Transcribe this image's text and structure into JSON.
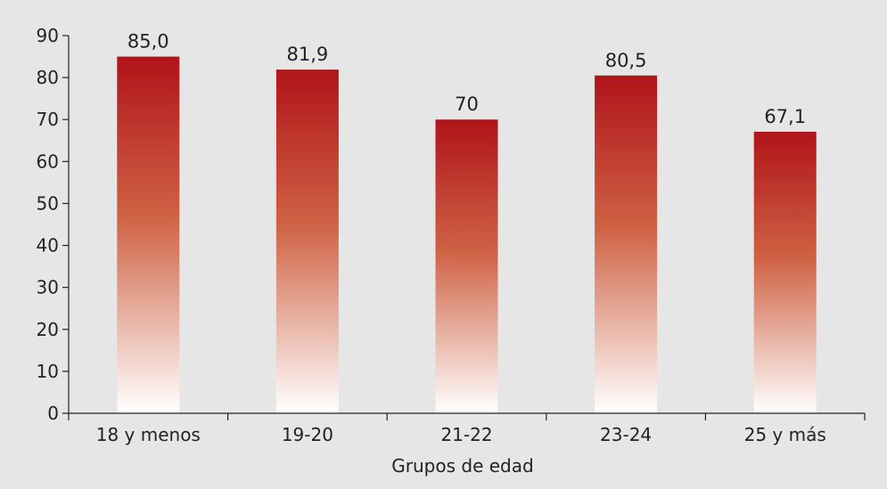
{
  "chart_data": {
    "type": "bar",
    "title": "",
    "xlabel": "Grupos de edad",
    "ylabel": "",
    "categories": [
      "18 y menos",
      "19-20",
      "21-22",
      "23-24",
      "25 y más"
    ],
    "values": [
      85.0,
      81.9,
      70,
      80.5,
      67.1
    ],
    "value_labels": [
      "85,0",
      "81,9",
      "70",
      "80,5",
      "67,1"
    ],
    "ylim": [
      0,
      90
    ],
    "yticks": [
      0,
      10,
      20,
      30,
      40,
      50,
      60,
      70,
      80,
      90
    ],
    "grid": false,
    "legend": "none",
    "colors": {
      "background": "#e6e6e6",
      "bar_top": "#b0141a",
      "bar_mid": "#cf6244",
      "bar_bottom": "#ffffff",
      "axis": "#222222"
    }
  }
}
